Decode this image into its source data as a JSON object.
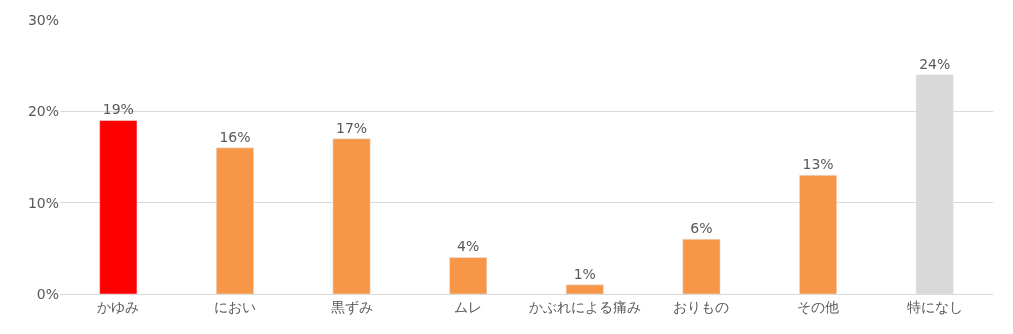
{
  "chart_data": {
    "type": "bar",
    "categories": [
      "かゆみ",
      "におい",
      "黒ずみ",
      "ムレ",
      "かぶれによる痛み",
      "おりもの",
      "その他",
      "特になし"
    ],
    "values": [
      19,
      16,
      17,
      4,
      1,
      6,
      13,
      24
    ],
    "value_labels": [
      "19%",
      "16%",
      "17%",
      "4%",
      "1%",
      "6%",
      "13%",
      "24%"
    ],
    "colors": [
      "#ff0000",
      "#f79646",
      "#f79646",
      "#f79646",
      "#f79646",
      "#f79646",
      "#f79646",
      "#d9d9d9"
    ],
    "ylim": [
      0,
      30
    ],
    "yticks": [
      {
        "value": 0,
        "label": "0%"
      },
      {
        "value": 10,
        "label": "10%"
      },
      {
        "value": 20,
        "label": "20%"
      },
      {
        "value": 30,
        "label": "30%"
      }
    ],
    "grid": "y",
    "legend": false
  }
}
